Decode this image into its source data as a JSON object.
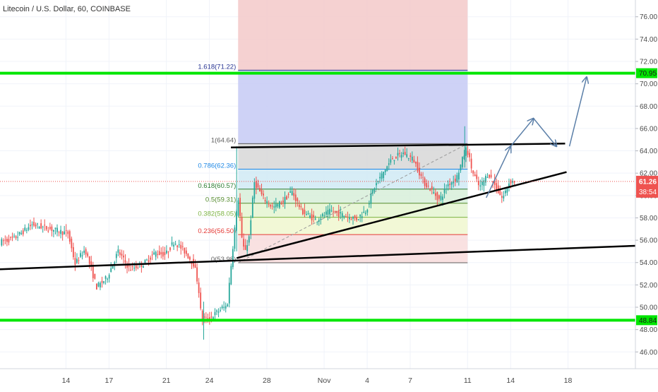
{
  "header": {
    "title": "Litecoin / U.S. Dollar, 60, COINBASE"
  },
  "colors": {
    "candle_up": "#26a69a",
    "candle_down": "#ef5350",
    "support_resistance": "#00e600",
    "trendline": "#000000",
    "projection_arrows": "#5b7fa8",
    "price_line": "#ef5350",
    "fib_top_zone": "#f4cccc",
    "fib_ext_zone": "#c9cdf5",
    "fib_0_5": "#d9d9d9",
    "fib_0_5_786": "#d3ebf5",
    "fib_618": "#d9f0dc",
    "fib_382": "#e6f5d3",
    "fib_236": "#f1f7d1",
    "fib_0": "#f8dede"
  },
  "chart_data": {
    "type": "candlestick",
    "y_axis": {
      "min": 44.5,
      "max": 77.5,
      "ticks": [
        "76.00",
        "74.00",
        "72.00",
        "70.00",
        "68.00",
        "66.00",
        "64.00",
        "62.00",
        "60.00",
        "58.00",
        "56.00",
        "54.00",
        "52.00",
        "50.00",
        "48.00",
        "46.00"
      ],
      "tick_values": [
        76,
        74,
        72,
        70,
        68,
        66,
        64,
        62,
        60,
        58,
        56,
        54,
        52,
        50,
        48,
        46
      ]
    },
    "x_axis": {
      "labels": [
        {
          "text": "14",
          "t": 0.0
        },
        {
          "text": "17",
          "t": 3.0
        },
        {
          "text": "21",
          "t": 7.0
        },
        {
          "text": "24",
          "t": 10.0
        },
        {
          "text": "28",
          "t": 14.0
        },
        {
          "text": "Nov",
          "t": 18.0
        },
        {
          "text": "4",
          "t": 21.0
        },
        {
          "text": "7",
          "t": 24.0
        },
        {
          "text": "11",
          "t": 28.0
        },
        {
          "text": "14",
          "t": 31.0
        },
        {
          "text": "18",
          "t": 35.0
        }
      ],
      "t_min": -4.6,
      "t_max": 39.7
    },
    "current_price": {
      "value": 61.26,
      "label": "61.26",
      "countdown": "38:54"
    },
    "horizontal_levels": [
      {
        "value": 70.95,
        "label": "70.95"
      },
      {
        "value": 48.84,
        "label": "48.84"
      }
    ],
    "fibonacci": {
      "t_start": 12.0,
      "t_end": 28.0,
      "levels": [
        {
          "ratio": "1.618",
          "value": 71.22,
          "label": "1.618(71.22)"
        },
        {
          "ratio": "1",
          "value": 64.64,
          "label": "1(64.64)"
        },
        {
          "ratio": "0.786",
          "value": 62.36,
          "label": "0.786(62.36)"
        },
        {
          "ratio": "0.618",
          "value": 60.57,
          "label": "0.618(60.57)"
        },
        {
          "ratio": "0.5",
          "value": 59.31,
          "label": "0.5(59.31)"
        },
        {
          "ratio": "0.382",
          "value": 58.05,
          "label": "0.382(58.05)"
        },
        {
          "ratio": "0.236",
          "value": 56.5,
          "label": "0.236(56.50)"
        },
        {
          "ratio": "0",
          "value": 53.98,
          "label": "0(53.98)"
        }
      ],
      "top_zone_value": 78.0
    },
    "trendlines": [
      {
        "t1": -4.6,
        "v1": 53.4,
        "t2": 39.7,
        "v2": 55.5
      },
      {
        "t1": 11.5,
        "v1": 64.3,
        "t2": 34.8,
        "v2": 64.65
      },
      {
        "t1": 11.9,
        "v1": 54.4,
        "t2": 34.9,
        "v2": 62.1
      }
    ],
    "projection_path": [
      {
        "t": 29.3,
        "v": 59.8
      },
      {
        "t": 31.0,
        "v": 64.4
      },
      {
        "t": 32.6,
        "v": 66.9
      },
      {
        "t": 34.2,
        "v": 64.4
      },
      {
        "t": 35.1,
        "v": 64.4
      },
      {
        "t": 36.3,
        "v": 70.6
      }
    ],
    "price_anchors": [
      {
        "t": -4.6,
        "v": 55.8
      },
      {
        "t": -3.5,
        "v": 56.2
      },
      {
        "t": -2.3,
        "v": 57.4
      },
      {
        "t": -1.0,
        "v": 57.0
      },
      {
        "t": 0.2,
        "v": 56.6
      },
      {
        "t": 0.7,
        "v": 53.9
      },
      {
        "t": 1.4,
        "v": 55.2
      },
      {
        "t": 2.2,
        "v": 51.8
      },
      {
        "t": 2.9,
        "v": 52.6
      },
      {
        "t": 3.7,
        "v": 55.0
      },
      {
        "t": 4.5,
        "v": 53.4
      },
      {
        "t": 5.5,
        "v": 53.9
      },
      {
        "t": 6.3,
        "v": 54.9
      },
      {
        "t": 7.0,
        "v": 54.7
      },
      {
        "t": 7.6,
        "v": 55.9
      },
      {
        "t": 8.4,
        "v": 54.9
      },
      {
        "t": 9.0,
        "v": 53.8
      },
      {
        "t": 9.3,
        "v": 51.8
      },
      {
        "t": 9.5,
        "v": 49.0
      },
      {
        "t": 10.0,
        "v": 48.9
      },
      {
        "t": 10.9,
        "v": 49.9
      },
      {
        "t": 11.3,
        "v": 50.1
      },
      {
        "t": 11.8,
        "v": 56.8
      },
      {
        "t": 12.1,
        "v": 60.0
      },
      {
        "t": 12.3,
        "v": 56.2
      },
      {
        "t": 12.5,
        "v": 55.0
      },
      {
        "t": 12.8,
        "v": 56.0
      },
      {
        "t": 13.2,
        "v": 61.2
      },
      {
        "t": 13.8,
        "v": 59.8
      },
      {
        "t": 14.5,
        "v": 58.9
      },
      {
        "t": 15.2,
        "v": 59.5
      },
      {
        "t": 15.8,
        "v": 60.4
      },
      {
        "t": 16.5,
        "v": 58.6
      },
      {
        "t": 17.5,
        "v": 57.8
      },
      {
        "t": 18.5,
        "v": 58.6
      },
      {
        "t": 19.5,
        "v": 58.2
      },
      {
        "t": 20.3,
        "v": 57.9
      },
      {
        "t": 21.0,
        "v": 58.7
      },
      {
        "t": 21.5,
        "v": 60.6
      },
      {
        "t": 22.2,
        "v": 62.1
      },
      {
        "t": 22.8,
        "v": 63.3
      },
      {
        "t": 23.6,
        "v": 63.8
      },
      {
        "t": 24.3,
        "v": 63.2
      },
      {
        "t": 25.0,
        "v": 61.2
      },
      {
        "t": 25.6,
        "v": 60.4
      },
      {
        "t": 26.1,
        "v": 59.6
      },
      {
        "t": 26.7,
        "v": 61.0
      },
      {
        "t": 27.3,
        "v": 61.6
      },
      {
        "t": 27.8,
        "v": 63.6
      },
      {
        "t": 28.0,
        "v": 64.3
      },
      {
        "t": 28.4,
        "v": 62.1
      },
      {
        "t": 28.9,
        "v": 60.7
      },
      {
        "t": 29.5,
        "v": 62.0
      },
      {
        "t": 30.0,
        "v": 60.8
      },
      {
        "t": 30.5,
        "v": 59.7
      },
      {
        "t": 31.0,
        "v": 61.3
      },
      {
        "t": 31.2,
        "v": 61.26
      }
    ]
  }
}
